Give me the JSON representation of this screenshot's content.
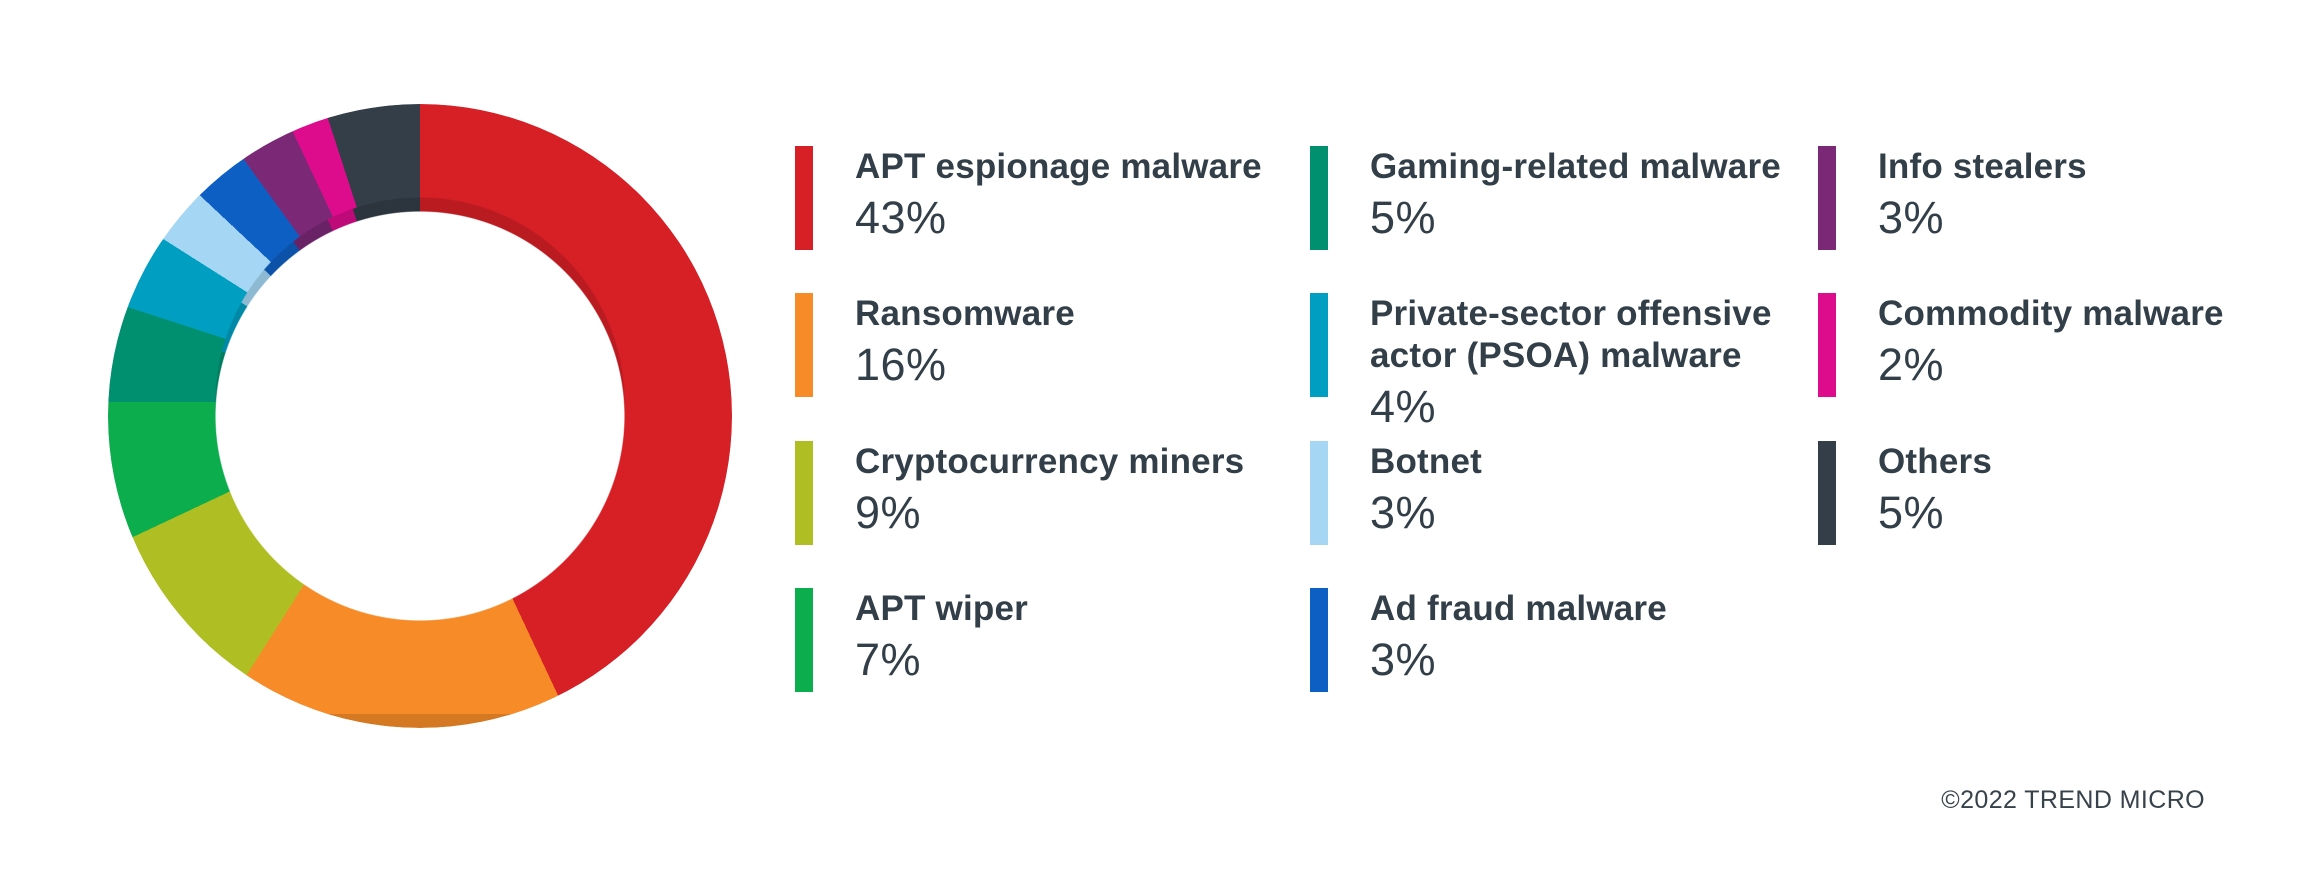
{
  "chart_data": {
    "type": "pie",
    "subtype": "donut",
    "title": "",
    "legend_position": "right",
    "donut_hole_ratio": 0.66,
    "start_angle_deg": 0,
    "direction": "clockwise",
    "categories": [
      "APT espionage malware",
      "Ransomware",
      "Cryptocurrency miners",
      "APT wiper",
      "Gaming-related malware",
      "Private-sector offensive actor (PSOA) malware",
      "Botnet",
      "Ad fraud malware",
      "Info stealers",
      "Commodity malware",
      "Others"
    ],
    "values": [
      43,
      16,
      9,
      7,
      5,
      4,
      3,
      3,
      3,
      2,
      5
    ],
    "value_labels": [
      "43%",
      "16%",
      "9%",
      "7%",
      "5%",
      "4%",
      "3%",
      "3%",
      "3%",
      "2%",
      "5%"
    ],
    "colors": [
      "#d71f26",
      "#f68b28",
      "#afbe22",
      "#0bad4d",
      "#00906f",
      "#009fc1",
      "#a5d7f4",
      "#0e5fc4",
      "#7b2877",
      "#dc0c8c",
      "#333e48"
    ]
  },
  "style": {
    "background": "#ffffff",
    "text_color": "#333f48",
    "shade_factor": 0.86
  },
  "footer": {
    "copyright": "©2022 TREND MICRO"
  }
}
